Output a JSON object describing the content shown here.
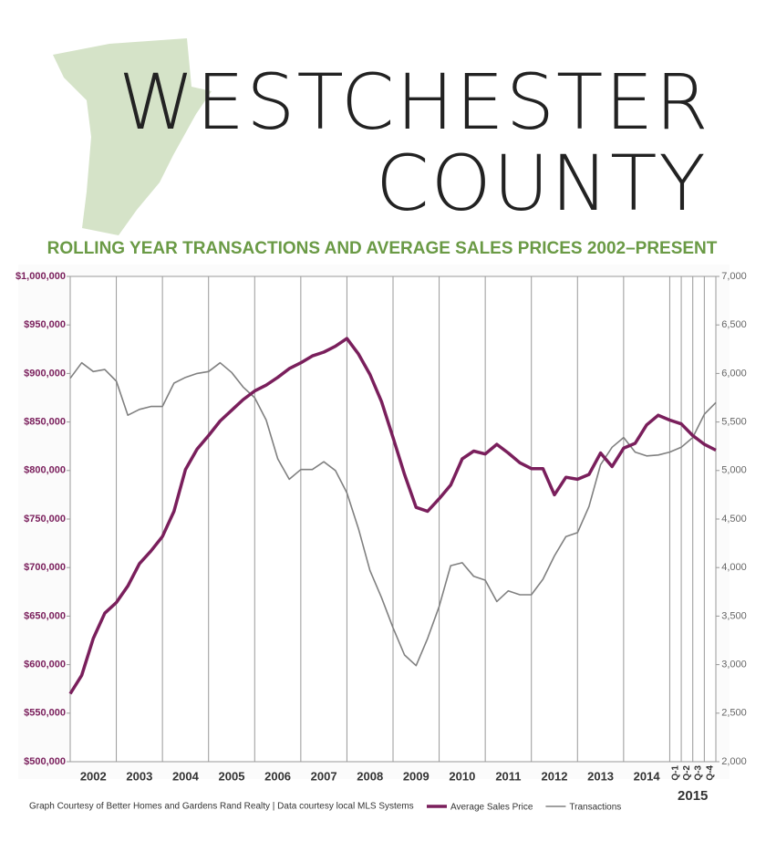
{
  "chart_data": {
    "type": "line",
    "title": "WESTCHESTER",
    "title_line2": "COUNTY",
    "subtitle": "ROLLING YEAR TRANSACTIONS AND AVERAGE SALES PRICES 2002–PRESENT",
    "source": "Graph Courtesy of Better Homes and Gardens Rand Realty  |  Data courtesy local MLS Systems",
    "x": [
      2002,
      2002.25,
      2002.5,
      2002.75,
      2003,
      2003.25,
      2003.5,
      2003.75,
      2004,
      2004.25,
      2004.5,
      2004.75,
      2005,
      2005.25,
      2005.5,
      2005.75,
      2006,
      2006.25,
      2006.5,
      2006.75,
      2007,
      2007.25,
      2007.5,
      2007.75,
      2008,
      2008.25,
      2008.5,
      2008.75,
      2009,
      2009.25,
      2009.5,
      2009.75,
      2010,
      2010.25,
      2010.5,
      2010.75,
      2011,
      2011.25,
      2011.5,
      2011.75,
      2012,
      2012.25,
      2012.5,
      2012.75,
      2013,
      2013.25,
      2013.5,
      2013.75,
      2014,
      2014.25,
      2014.5,
      2014.75,
      2015,
      2015.25,
      2015.5,
      2015.75,
      2016
    ],
    "series": [
      {
        "name": "Average Sales Price",
        "color": "#7a1f5c",
        "width": 3.5,
        "values": [
          570000,
          589000,
          627000,
          653000,
          664000,
          681000,
          704000,
          717000,
          732000,
          758000,
          801000,
          822000,
          836000,
          851000,
          862000,
          873000,
          882000,
          888000,
          896000,
          905000,
          911000,
          918000,
          922000,
          928000,
          936000,
          920000,
          899000,
          871000,
          834000,
          796000,
          762000,
          758000,
          771000,
          785000,
          812000,
          820000,
          817000,
          827000,
          818000,
          808000,
          802000,
          802000,
          775000,
          793000,
          791000,
          796000,
          818000,
          804000,
          823000,
          828000,
          847000,
          857000,
          852000,
          848000,
          836000,
          827000,
          821000
        ]
      },
      {
        "name": "Transactions",
        "color": "#808080",
        "width": 1.6,
        "axis": "y2",
        "values": [
          5950,
          6110,
          6020,
          6040,
          5920,
          5570,
          5630,
          5660,
          5660,
          5900,
          5960,
          6000,
          6020,
          6110,
          6010,
          5860,
          5750,
          5520,
          5120,
          4910,
          5010,
          5010,
          5090,
          5000,
          4770,
          4400,
          3970,
          3690,
          3380,
          3100,
          2990,
          3270,
          3600,
          4020,
          4050,
          3910,
          3870,
          3650,
          3760,
          3720,
          3720,
          3880,
          4120,
          4320,
          4360,
          4630,
          5060,
          5240,
          5340,
          5190,
          5150,
          5160,
          5190,
          5240,
          5340,
          5580,
          5700
        ]
      }
    ],
    "xlim": [
      2002,
      2016
    ],
    "xticks": [
      {
        "value": 2002.5,
        "label": "2002"
      },
      {
        "value": 2003.5,
        "label": "2003"
      },
      {
        "value": 2004.5,
        "label": "2004"
      },
      {
        "value": 2005.5,
        "label": "2005"
      },
      {
        "value": 2006.5,
        "label": "2006"
      },
      {
        "value": 2007.5,
        "label": "2007"
      },
      {
        "value": 2008.5,
        "label": "2008"
      },
      {
        "value": 2009.5,
        "label": "2009"
      },
      {
        "value": 2010.5,
        "label": "2010"
      },
      {
        "value": 2011.5,
        "label": "2011"
      },
      {
        "value": 2012.5,
        "label": "2012"
      },
      {
        "value": 2013.5,
        "label": "2013"
      },
      {
        "value": 2014.5,
        "label": "2014"
      }
    ],
    "xticks_minor": [
      {
        "value": 2015.125,
        "label": "Q-1"
      },
      {
        "value": 2015.375,
        "label": "Q-2"
      },
      {
        "value": 2015.625,
        "label": "Q-3"
      },
      {
        "value": 2015.875,
        "label": "Q-4"
      }
    ],
    "xgroup_labels": [
      {
        "value": 2015.5,
        "label": "2015"
      }
    ],
    "xgrid": [
      2003,
      2004,
      2005,
      2006,
      2007,
      2008,
      2009,
      2010,
      2011,
      2012,
      2013,
      2014,
      2015,
      2015.25,
      2015.5,
      2015.75
    ],
    "ylim": [
      500000,
      1000000
    ],
    "yticks": [
      {
        "value": 500000,
        "label": "$500,000"
      },
      {
        "value": 550000,
        "label": "$550,000"
      },
      {
        "value": 600000,
        "label": "$600,000"
      },
      {
        "value": 650000,
        "label": "$650,000"
      },
      {
        "value": 700000,
        "label": "$700,000"
      },
      {
        "value": 750000,
        "label": "$750,000"
      },
      {
        "value": 800000,
        "label": "$800,000"
      },
      {
        "value": 850000,
        "label": "$850,000"
      },
      {
        "value": 900000,
        "label": "$900,000"
      },
      {
        "value": 950000,
        "label": "$950,000"
      },
      {
        "value": 1000000,
        "label": "$1,000,000"
      }
    ],
    "y2lim": [
      2000,
      7000
    ],
    "y2ticks": [
      {
        "value": 2000,
        "label": "2,000"
      },
      {
        "value": 2500,
        "label": "2,500"
      },
      {
        "value": 3000,
        "label": "3,000"
      },
      {
        "value": 3500,
        "label": "3,500"
      },
      {
        "value": 4000,
        "label": "4,000"
      },
      {
        "value": 4500,
        "label": "4,500"
      },
      {
        "value": 5000,
        "label": "5,000"
      },
      {
        "value": 5500,
        "label": "5,500"
      },
      {
        "value": 6000,
        "label": "6,000"
      },
      {
        "value": 6500,
        "label": "6,500"
      },
      {
        "value": 7000,
        "label": "7,000"
      }
    ],
    "grid": true,
    "legend": "bottom"
  }
}
